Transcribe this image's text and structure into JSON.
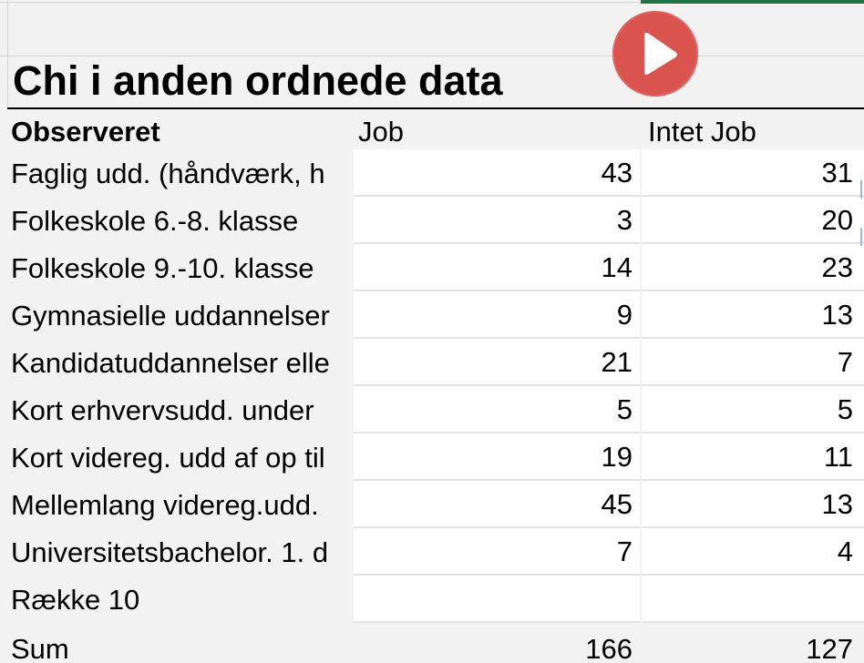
{
  "colors": {
    "accent": "#217346",
    "play": "#d9534f"
  },
  "sheet": {
    "title": "Chi i anden ordnede data",
    "play_icon": "play-icon",
    "headers": {
      "label": "Observeret",
      "col1": "Job",
      "col2": "Intet Job"
    },
    "rows": [
      {
        "label": "Faglig udd. (håndværk, h",
        "job": "43",
        "intet": "31"
      },
      {
        "label": "Folkeskole 6.-8. klasse",
        "job": "3",
        "intet": "20"
      },
      {
        "label": "Folkeskole 9.-10. klasse",
        "job": "14",
        "intet": "23"
      },
      {
        "label": "Gymnasielle uddannelser",
        "job": "9",
        "intet": "13"
      },
      {
        "label": "Kandidatuddannelser elle",
        "job": "21",
        "intet": "7"
      },
      {
        "label": "Kort erhvervsudd. under",
        "job": "5",
        "intet": "5"
      },
      {
        "label": "Kort videreg. udd af op til",
        "job": "19",
        "intet": "11"
      },
      {
        "label": "Mellemlang videreg.udd.",
        "job": "45",
        "intet": "13"
      },
      {
        "label": "Universitetsbachelor. 1. d",
        "job": "7",
        "intet": "4"
      },
      {
        "label": "Række 10",
        "job": "",
        "intet": ""
      }
    ],
    "sum": {
      "label": "Sum",
      "job": "166",
      "intet": "127"
    }
  }
}
